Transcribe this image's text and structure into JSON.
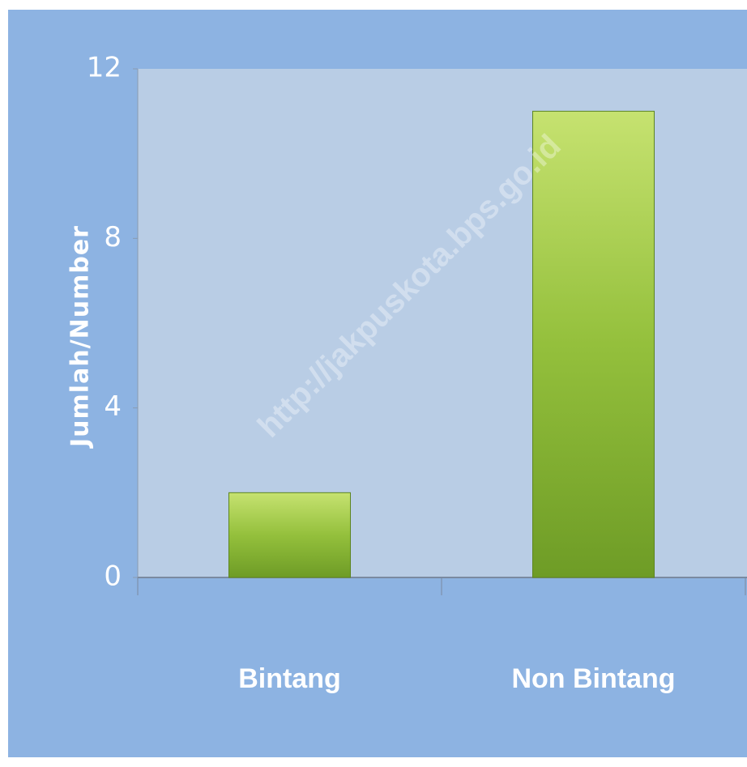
{
  "chart_data": {
    "type": "bar",
    "y_label": "Jumlah/Number",
    "watermark": "http://jakpuskota.bps.go.id",
    "categories": [
      "Bintang",
      "Non Bintang"
    ],
    "values": [
      2,
      11
    ],
    "color": "#8cb832",
    "ylim": [
      0,
      12
    ],
    "yticks": [
      0,
      4,
      8,
      12
    ],
    "grid": false
  }
}
